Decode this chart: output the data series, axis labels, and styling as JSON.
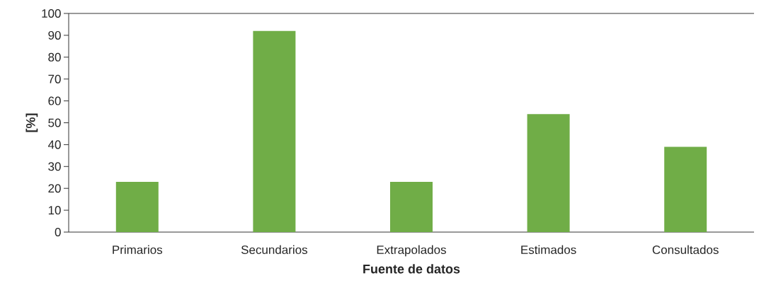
{
  "chart_data": {
    "type": "bar",
    "xlabel": "Fuente de datos",
    "ylabel": "[%]",
    "categories": [
      "Primarios",
      "Secundarios",
      "Extrapolados",
      "Estimados",
      "Consultados"
    ],
    "values": [
      23,
      92,
      23,
      54,
      39
    ],
    "color": "#70ad47",
    "ylim": [
      0,
      100
    ],
    "yticks": [
      0,
      10,
      20,
      30,
      40,
      50,
      60,
      70,
      80,
      90,
      100
    ]
  }
}
